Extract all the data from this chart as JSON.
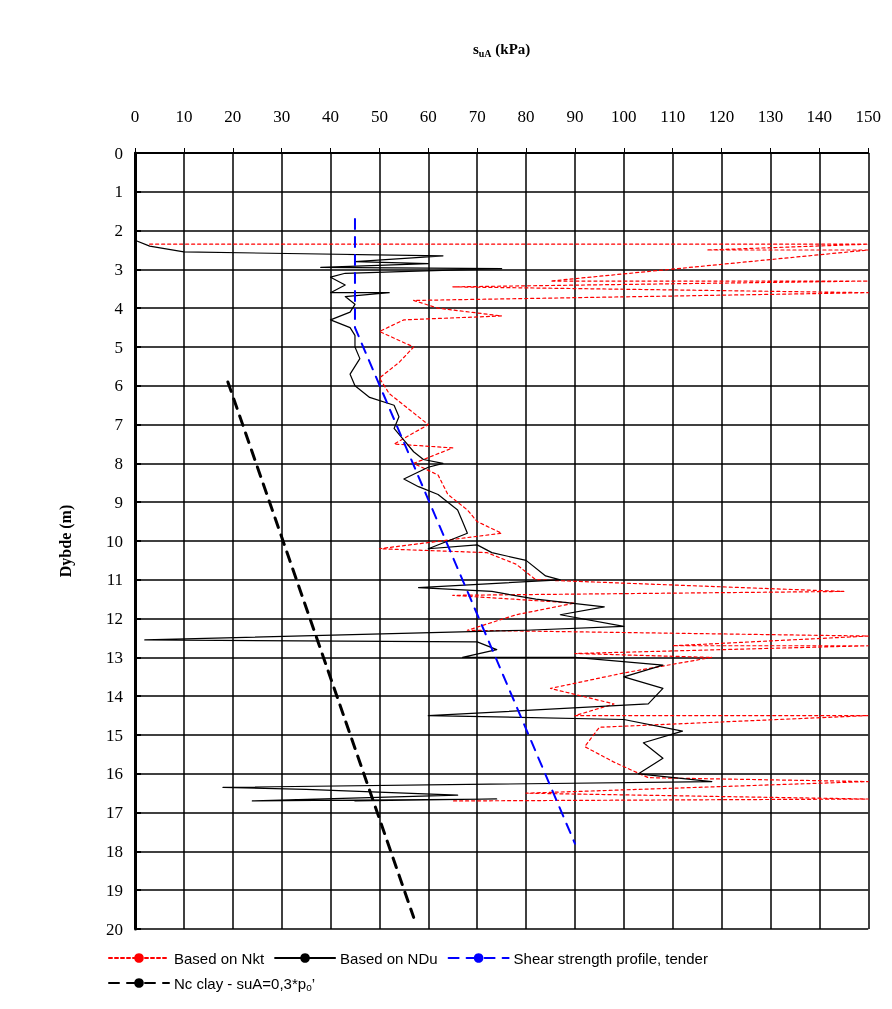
{
  "chart_data": {
    "type": "line",
    "xlabel": "s$_{uA}$ (kPa)",
    "ylabel": "Dybde (m)",
    "xlim": [
      0,
      150
    ],
    "xticks": [
      0,
      10,
      20,
      30,
      40,
      50,
      60,
      70,
      80,
      90,
      100,
      110,
      120,
      130,
      140,
      150
    ],
    "ylim": [
      20,
      0
    ],
    "yticks": [
      0,
      1,
      2,
      3,
      4,
      5,
      6,
      7,
      8,
      9,
      10,
      11,
      12,
      13,
      14,
      15,
      16,
      17,
      18,
      19,
      20
    ],
    "grid": true,
    "legend": "bottom",
    "marker": "none",
    "series": [
      {
        "name": "Based on Nkt",
        "color": "#ff0000",
        "line_style": "dotted",
        "x": [
          3,
          150,
          117,
          150,
          85,
          150,
          65,
          150,
          57,
          62,
          75,
          55,
          50,
          57,
          54,
          50,
          52,
          56,
          60,
          53,
          65,
          57,
          62,
          64,
          68,
          70,
          75,
          50,
          72,
          78,
          82,
          145,
          65,
          90,
          78,
          68,
          150,
          110,
          150,
          90,
          118,
          100,
          85,
          98,
          90,
          150,
          95,
          92,
          98,
          105,
          150,
          80,
          150,
          65
        ],
        "values": [
          2.35,
          2.35,
          2.5,
          2.5,
          3.3,
          3.3,
          3.45,
          3.6,
          3.8,
          4.0,
          4.2,
          4.3,
          4.6,
          5.0,
          5.4,
          5.8,
          6.2,
          6.6,
          7.0,
          7.5,
          7.6,
          8.0,
          8.3,
          8.8,
          9.2,
          9.5,
          9.8,
          10.2,
          10.3,
          10.6,
          11.0,
          11.3,
          11.4,
          11.6,
          11.9,
          12.3,
          12.45,
          12.7,
          12.7,
          12.9,
          13.0,
          13.4,
          13.8,
          14.2,
          14.5,
          14.5,
          14.8,
          15.3,
          15.7,
          16.1,
          16.2,
          16.5,
          16.65,
          16.7
        ]
      },
      {
        "name": "Based on NDu",
        "color": "#000000",
        "line_style": "solid",
        "x": [
          0,
          3,
          10,
          63,
          45,
          60,
          38,
          75,
          56,
          43,
          40,
          43,
          40,
          52,
          43,
          45,
          44,
          40,
          44,
          45,
          45,
          46,
          44,
          45,
          48,
          53,
          54,
          53,
          55,
          57,
          59,
          63,
          60,
          55,
          58,
          62,
          64,
          66,
          67,
          68,
          60,
          70,
          73,
          80,
          84,
          87,
          58,
          73,
          82,
          96,
          87,
          100,
          80,
          2,
          70,
          74,
          67,
          90,
          108,
          100,
          108,
          105,
          60,
          100,
          112,
          104,
          108,
          103,
          118,
          18,
          35,
          66,
          24,
          74,
          45
        ],
        "values": [
          2.25,
          2.4,
          2.55,
          2.65,
          2.8,
          2.85,
          2.95,
          2.98,
          3.05,
          3.1,
          3.2,
          3.4,
          3.6,
          3.6,
          3.7,
          3.9,
          4.1,
          4.3,
          4.5,
          4.7,
          5.0,
          5.3,
          5.7,
          6.0,
          6.3,
          6.5,
          6.8,
          7.1,
          7.4,
          7.7,
          7.9,
          8.0,
          8.1,
          8.4,
          8.6,
          8.8,
          9.0,
          9.2,
          9.5,
          9.8,
          10.2,
          10.1,
          10.3,
          10.5,
          10.9,
          11.0,
          11.2,
          11.3,
          11.5,
          11.7,
          11.9,
          12.2,
          12.3,
          12.55,
          12.6,
          12.8,
          13.0,
          13.0,
          13.2,
          13.5,
          13.8,
          14.2,
          14.5,
          14.6,
          14.9,
          15.2,
          15.6,
          16.0,
          16.2,
          16.35,
          16.4,
          16.55,
          16.7,
          16.65,
          16.7
        ]
      },
      {
        "name": "Shear strength profile, tender",
        "color": "#0000ff",
        "line_style": "dashed",
        "x": [
          45,
          45,
          90
        ],
        "values": [
          1.7,
          4.5,
          17.8
        ]
      },
      {
        "name": "Nc clay - suA=0,3*p$_{o}$’",
        "color": "#000000",
        "line_style": "dashed",
        "x": [
          19,
          57
        ],
        "values": [
          5.9,
          19.7
        ]
      }
    ]
  }
}
